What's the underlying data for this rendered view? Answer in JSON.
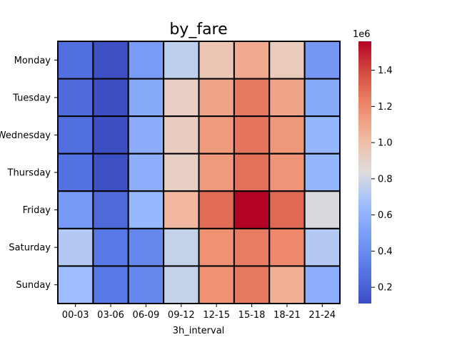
{
  "chart_data": {
    "type": "heatmap",
    "title": "by_fare",
    "xlabel": "3h_interval",
    "ylabel": "",
    "x_categories": [
      "00-03",
      "03-06",
      "06-09",
      "09-12",
      "12-15",
      "15-18",
      "18-21",
      "21-24"
    ],
    "y_categories": [
      "Monday",
      "Tuesday",
      "Wednesday",
      "Thursday",
      "Friday",
      "Saturday",
      "Sunday"
    ],
    "values": [
      [
        260000,
        130000,
        480000,
        750000,
        960000,
        1080000,
        940000,
        460000
      ],
      [
        250000,
        120000,
        560000,
        920000,
        1100000,
        1250000,
        1100000,
        560000
      ],
      [
        260000,
        120000,
        570000,
        930000,
        1140000,
        1260000,
        1150000,
        620000
      ],
      [
        280000,
        130000,
        580000,
        920000,
        1140000,
        1280000,
        1160000,
        620000
      ],
      [
        470000,
        240000,
        630000,
        1030000,
        1290000,
        1560000,
        1300000,
        820000
      ],
      [
        720000,
        300000,
        380000,
        770000,
        1170000,
        1240000,
        1200000,
        720000
      ],
      [
        660000,
        300000,
        380000,
        770000,
        1170000,
        1250000,
        1060000,
        580000
      ]
    ],
    "colorbar": {
      "min": 110000,
      "max": 1560000,
      "ticks": [
        200000,
        400000,
        600000,
        800000,
        1000000,
        1200000,
        1400000
      ],
      "tick_labels": [
        "0.2",
        "0.4",
        "0.6",
        "0.8",
        "1.0",
        "1.2",
        "1.4"
      ],
      "offset_label": "1e6",
      "colormap": "coolwarm"
    },
    "cell_border_color": "#000000"
  }
}
